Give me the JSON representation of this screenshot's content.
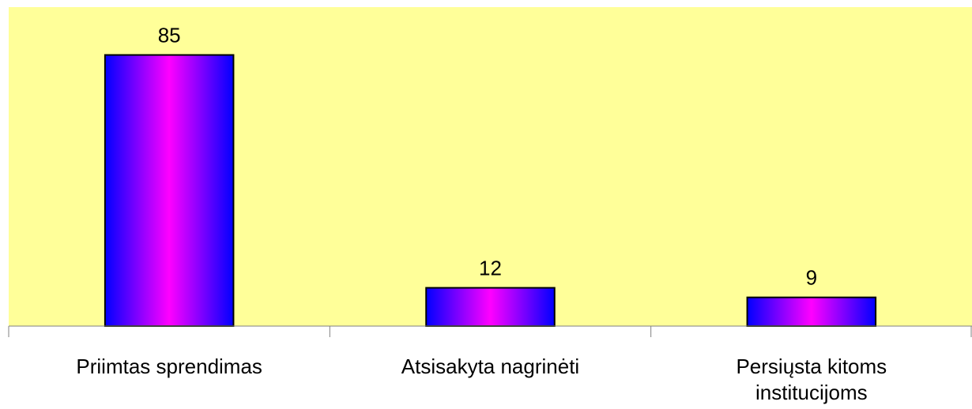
{
  "chart_data": {
    "type": "bar",
    "categories": [
      [
        "Priimtas sprendimas"
      ],
      [
        "Atsisakyta nagrinėti"
      ],
      [
        "Persiųsta kitoms",
        "institucijoms"
      ]
    ],
    "values": [
      85,
      12,
      9
    ],
    "data_labels": [
      "85",
      "12",
      "9"
    ],
    "ylim": [
      0,
      100
    ],
    "grid": false,
    "legend": "none",
    "colors": {
      "plot_background": "#FFFF99",
      "bar_gradient": [
        "#0000FF",
        "#FF00FF",
        "#0000FF"
      ],
      "bar_outline": "#000000",
      "axis": "#808080"
    }
  }
}
